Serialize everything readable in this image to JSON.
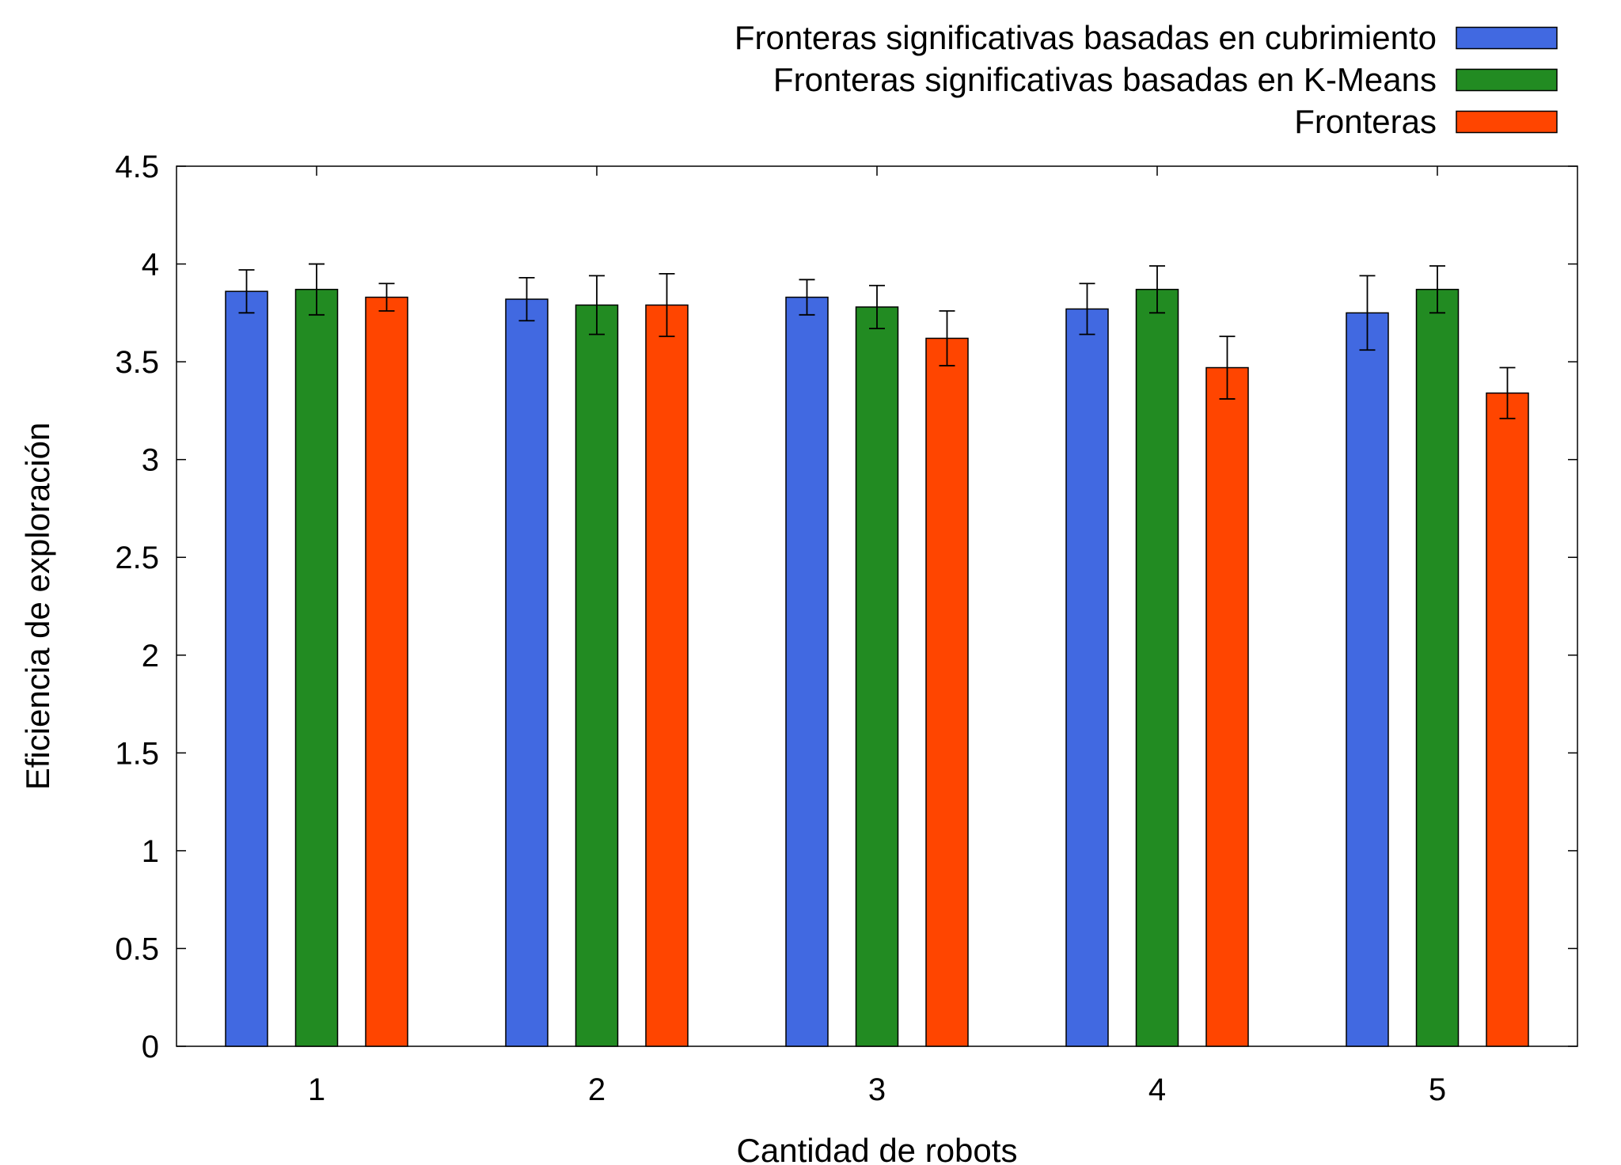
{
  "chart_data": {
    "type": "bar",
    "xlabel": "Cantidad de robots",
    "ylabel": "Eficiencia de exploración",
    "categories": [
      "1",
      "2",
      "3",
      "4",
      "5"
    ],
    "ylim": [
      0,
      4.5
    ],
    "yticks": [
      "0",
      "0.5",
      "1",
      "1.5",
      "2",
      "2.5",
      "3",
      "3.5",
      "4",
      "4.5"
    ],
    "grid": false,
    "legend_position": "top-right, outside",
    "error_bars": true,
    "series": [
      {
        "name": "Fronteras significativas basadas en cubrimiento",
        "color": "#4169E1",
        "values": [
          3.86,
          3.82,
          3.83,
          3.77,
          3.75
        ],
        "errors": [
          0.11,
          0.11,
          0.09,
          0.13,
          0.19
        ]
      },
      {
        "name": "Fronteras significativas basadas en K-Means",
        "color": "#228B22",
        "values": [
          3.87,
          3.79,
          3.78,
          3.87,
          3.87
        ],
        "errors": [
          0.13,
          0.15,
          0.11,
          0.12,
          0.12
        ]
      },
      {
        "name": "Fronteras",
        "color": "#FF4500",
        "values": [
          3.83,
          3.79,
          3.62,
          3.47,
          3.34
        ],
        "errors": [
          0.07,
          0.16,
          0.14,
          0.16,
          0.13
        ]
      }
    ]
  }
}
